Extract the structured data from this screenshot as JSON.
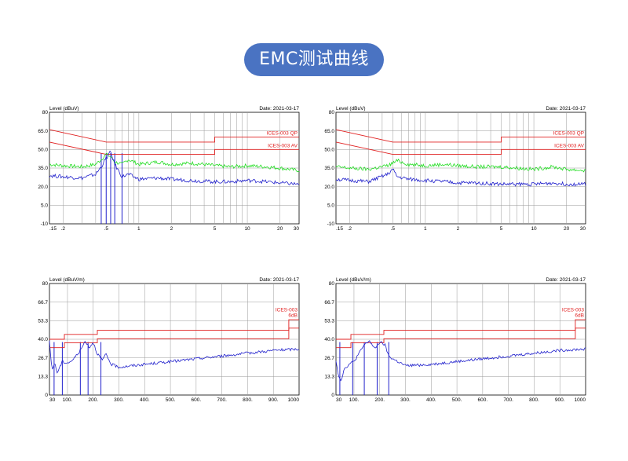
{
  "page_title": "EMC测试曲线",
  "chart_data": [
    {
      "type": "line",
      "panel": "conducted-1",
      "ylabel": "Level (dBuV)",
      "date": "Date: 2021-03-17",
      "log_x": true,
      "xlim": [
        0.15,
        30
      ],
      "ylim": [
        -10,
        80
      ],
      "yticks": [
        "80",
        "65.0",
        "50.0",
        "35.0",
        "20.0",
        "5.0",
        "-10"
      ],
      "ytick_values": [
        80,
        65,
        50,
        35,
        20,
        5,
        -10
      ],
      "xticks": [
        ".15",
        ".2",
        ".5",
        "1",
        "2",
        "5",
        "10",
        "20",
        "30"
      ],
      "xtick_values": [
        0.15,
        0.2,
        0.5,
        1,
        2,
        5,
        10,
        20,
        30
      ],
      "limits": [
        {
          "name": "ICES-003 QP",
          "points": [
            [
              0.15,
              66
            ],
            [
              0.5,
              56
            ],
            [
              5,
              56
            ],
            [
              5,
              60
            ],
            [
              30,
              60
            ]
          ]
        },
        {
          "name": "ICES-003 AV",
          "points": [
            [
              0.15,
              56
            ],
            [
              0.5,
              46
            ],
            [
              5,
              46
            ],
            [
              5,
              50
            ],
            [
              30,
              50
            ]
          ]
        }
      ],
      "series": [
        {
          "color": "#22dd22",
          "points": [
            [
              0.15,
              38
            ],
            [
              0.2,
              37
            ],
            [
              0.3,
              36
            ],
            [
              0.4,
              38
            ],
            [
              0.45,
              42
            ],
            [
              0.5,
              46
            ],
            [
              0.55,
              44
            ],
            [
              0.6,
              40
            ],
            [
              0.7,
              38
            ],
            [
              0.8,
              42
            ],
            [
              1,
              38
            ],
            [
              1.5,
              40
            ],
            [
              2,
              38
            ],
            [
              3,
              39
            ],
            [
              4,
              38
            ],
            [
              5,
              37
            ],
            [
              7,
              36
            ],
            [
              10,
              37
            ],
            [
              15,
              36
            ],
            [
              20,
              35
            ],
            [
              30,
              33
            ]
          ]
        },
        {
          "color": "#2020cc",
          "points": [
            [
              0.15,
              29
            ],
            [
              0.2,
              28
            ],
            [
              0.3,
              27
            ],
            [
              0.4,
              30
            ],
            [
              0.45,
              36
            ],
            [
              0.5,
              43
            ],
            [
              0.55,
              48
            ],
            [
              0.6,
              38
            ],
            [
              0.7,
              28
            ],
            [
              0.8,
              30
            ],
            [
              1,
              26
            ],
            [
              1.5,
              27
            ],
            [
              2,
              26
            ],
            [
              3,
              25
            ],
            [
              5,
              24
            ],
            [
              7,
              24
            ],
            [
              10,
              25
            ],
            [
              15,
              24
            ],
            [
              20,
              23
            ],
            [
              30,
              22
            ]
          ]
        }
      ],
      "markers": [
        0.45,
        0.5,
        0.55,
        0.6,
        0.7
      ]
    },
    {
      "type": "line",
      "panel": "conducted-2",
      "ylabel": "Level (dBuV)",
      "date": "Date: 2021-03-17",
      "log_x": true,
      "xlim": [
        0.15,
        30
      ],
      "ylim": [
        -10,
        80
      ],
      "yticks": [
        "80",
        "65.0",
        "50.0",
        "35.0",
        "20.0",
        "5.0",
        "-10"
      ],
      "ytick_values": [
        80,
        65,
        50,
        35,
        20,
        5,
        -10
      ],
      "xticks": [
        ".15",
        ".2",
        ".5",
        "1",
        "2",
        "5",
        "10",
        "20",
        "30"
      ],
      "xtick_values": [
        0.15,
        0.2,
        0.5,
        1,
        2,
        5,
        10,
        20,
        30
      ],
      "limits": [
        {
          "name": "ICES-003 QP",
          "points": [
            [
              0.15,
              66
            ],
            [
              0.5,
              56
            ],
            [
              5,
              56
            ],
            [
              5,
              60
            ],
            [
              30,
              60
            ]
          ]
        },
        {
          "name": "ICES-003 AV",
          "points": [
            [
              0.15,
              56
            ],
            [
              0.5,
              46
            ],
            [
              5,
              46
            ],
            [
              5,
              50
            ],
            [
              30,
              50
            ]
          ]
        }
      ],
      "series": [
        {
          "color": "#22dd22",
          "points": [
            [
              0.15,
              36
            ],
            [
              0.2,
              35
            ],
            [
              0.3,
              34
            ],
            [
              0.45,
              37
            ],
            [
              0.5,
              39
            ],
            [
              0.55,
              41
            ],
            [
              0.7,
              38
            ],
            [
              1,
              37
            ],
            [
              1.5,
              38
            ],
            [
              2,
              37
            ],
            [
              3,
              36
            ],
            [
              5,
              36
            ],
            [
              7,
              35
            ],
            [
              10,
              34
            ],
            [
              15,
              36
            ],
            [
              20,
              34
            ],
            [
              30,
              33
            ]
          ]
        },
        {
          "color": "#2020cc",
          "points": [
            [
              0.15,
              26
            ],
            [
              0.2,
              25
            ],
            [
              0.3,
              24
            ],
            [
              0.45,
              30
            ],
            [
              0.5,
              34
            ],
            [
              0.55,
              28
            ],
            [
              0.7,
              26
            ],
            [
              1,
              25
            ],
            [
              1.5,
              24
            ],
            [
              2,
              23
            ],
            [
              3,
              23
            ],
            [
              5,
              22
            ],
            [
              7,
              22
            ],
            [
              10,
              22
            ],
            [
              15,
              23
            ],
            [
              20,
              22
            ],
            [
              30,
              22
            ]
          ]
        }
      ],
      "markers": []
    },
    {
      "type": "line",
      "panel": "radiated-1",
      "ylabel": "Level (dBuV/m)",
      "date": "Date: 2021-03-17",
      "log_x": false,
      "xlim": [
        30,
        1000
      ],
      "ylim": [
        0,
        80
      ],
      "yticks": [
        "80",
        "66.7",
        "53.3",
        "40.0",
        "26.7",
        "13.3",
        "0"
      ],
      "ytick_values": [
        80,
        66.7,
        53.3,
        40,
        26.7,
        13.3,
        0
      ],
      "xticks": [
        "30",
        "100.",
        "200.",
        "300.",
        "400.",
        "500.",
        "600.",
        "700.",
        "800.",
        "900.",
        "1000"
      ],
      "xtick_values": [
        30,
        100,
        200,
        300,
        400,
        500,
        600,
        700,
        800,
        900,
        1000
      ],
      "limits": [
        {
          "name": "ICES-003",
          "points": [
            [
              30,
              40
            ],
            [
              88,
              40
            ],
            [
              88,
              43.5
            ],
            [
              216,
              43.5
            ],
            [
              216,
              46.4
            ],
            [
              960,
              46.4
            ],
            [
              960,
              54
            ],
            [
              1000,
              54
            ]
          ]
        },
        {
          "name": "6dB",
          "points": [
            [
              30,
              34
            ],
            [
              88,
              34
            ],
            [
              88,
              37.5
            ],
            [
              216,
              37.5
            ],
            [
              216,
              40.4
            ],
            [
              960,
              40.4
            ],
            [
              960,
              48
            ],
            [
              1000,
              48
            ]
          ]
        }
      ],
      "series": [
        {
          "color": "#2020cc",
          "points": [
            [
              30,
              38
            ],
            [
              40,
              18
            ],
            [
              50,
              23
            ],
            [
              60,
              16
            ],
            [
              80,
              24
            ],
            [
              100,
              23
            ],
            [
              120,
              25
            ],
            [
              150,
              32
            ],
            [
              170,
              39
            ],
            [
              185,
              34
            ],
            [
              200,
              38
            ],
            [
              215,
              30
            ],
            [
              235,
              25
            ],
            [
              250,
              29
            ],
            [
              270,
              22
            ],
            [
              300,
              20
            ],
            [
              400,
              22
            ],
            [
              500,
              24
            ],
            [
              600,
              26
            ],
            [
              700,
              28
            ],
            [
              800,
              30
            ],
            [
              900,
              32
            ],
            [
              1000,
              33
            ]
          ]
        }
      ],
      "markers": [
        48,
        80,
        150,
        180,
        230
      ]
    },
    {
      "type": "line",
      "panel": "radiated-2",
      "ylabel": "Level (dBuV/m)",
      "date": "Date: 2021-03-17",
      "log_x": false,
      "xlim": [
        30,
        1000
      ],
      "ylim": [
        0,
        80
      ],
      "yticks": [
        "80",
        "66.7",
        "53.3",
        "40.0",
        "26.7",
        "13.3",
        "0"
      ],
      "ytick_values": [
        80,
        66.7,
        53.3,
        40,
        26.7,
        13.3,
        0
      ],
      "xticks": [
        "30",
        "100.",
        "200.",
        "300.",
        "400.",
        "500.",
        "600.",
        "700.",
        "800.",
        "900.",
        "1000"
      ],
      "xtick_values": [
        30,
        100,
        200,
        300,
        400,
        500,
        600,
        700,
        800,
        900,
        1000
      ],
      "limits": [
        {
          "name": "ICES-003",
          "points": [
            [
              30,
              40
            ],
            [
              88,
              40
            ],
            [
              88,
              43.5
            ],
            [
              216,
              43.5
            ],
            [
              216,
              46.4
            ],
            [
              960,
              46.4
            ],
            [
              960,
              54
            ],
            [
              1000,
              54
            ]
          ]
        },
        {
          "name": "6dB",
          "points": [
            [
              30,
              34
            ],
            [
              88,
              34
            ],
            [
              88,
              37.5
            ],
            [
              216,
              37.5
            ],
            [
              216,
              40.4
            ],
            [
              960,
              40.4
            ],
            [
              960,
              48
            ],
            [
              1000,
              48
            ]
          ]
        }
      ],
      "series": [
        {
          "color": "#2020cc",
          "points": [
            [
              30,
              25
            ],
            [
              40,
              14
            ],
            [
              50,
              10
            ],
            [
              60,
              18
            ],
            [
              80,
              22
            ],
            [
              100,
              24
            ],
            [
              120,
              30
            ],
            [
              140,
              36
            ],
            [
              160,
              39
            ],
            [
              180,
              33
            ],
            [
              200,
              38
            ],
            [
              220,
              36
            ],
            [
              235,
              28
            ],
            [
              250,
              26
            ],
            [
              270,
              24
            ],
            [
              300,
              21
            ],
            [
              400,
              22
            ],
            [
              500,
              24
            ],
            [
              600,
              26
            ],
            [
              700,
              28
            ],
            [
              800,
              30
            ],
            [
              900,
              32
            ],
            [
              1000,
              33
            ]
          ]
        }
      ],
      "markers": [
        45,
        95,
        140,
        190,
        235
      ]
    }
  ]
}
